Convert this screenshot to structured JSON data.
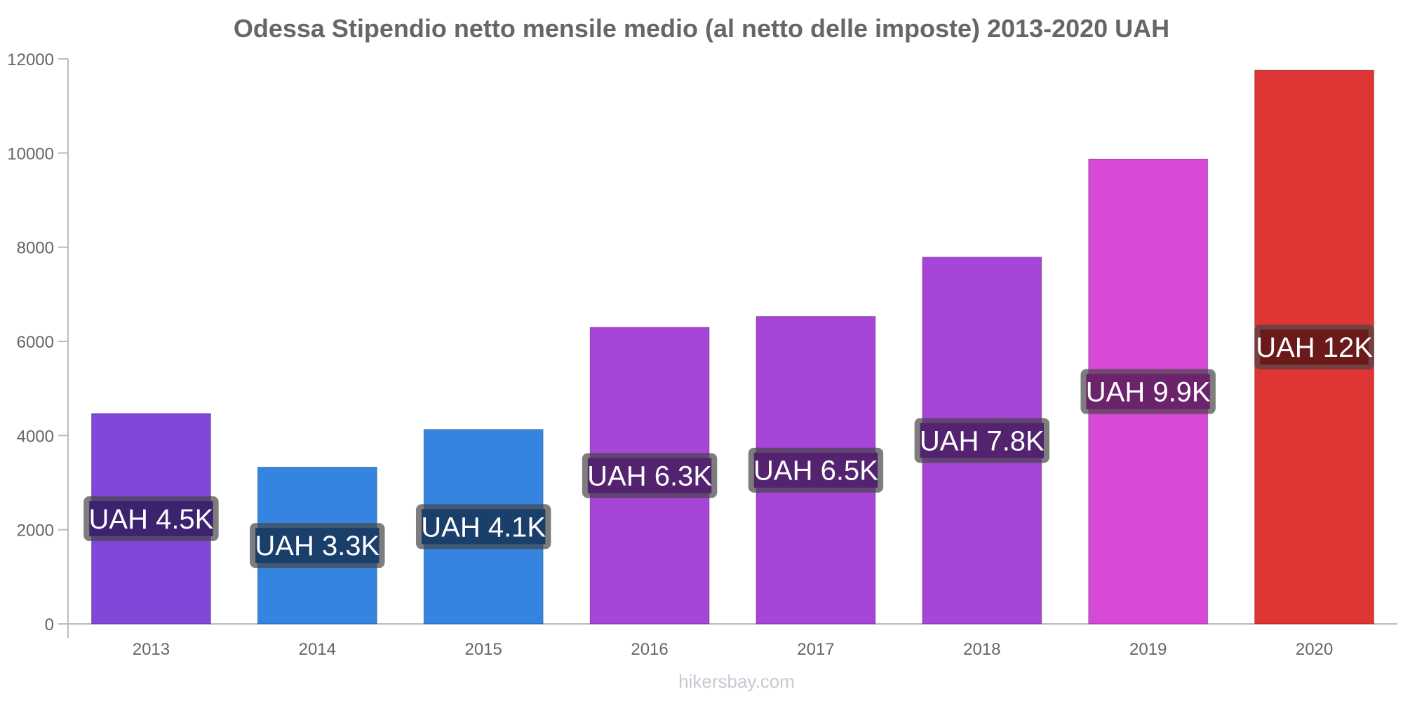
{
  "chart_data": {
    "type": "bar",
    "title": "Odessa Stipendio netto mensile medio (al netto delle imposte) 2013-2020 UAH",
    "xlabel": "",
    "ylabel": "",
    "ylim": [
      0,
      12000
    ],
    "yticks": [
      0,
      2000,
      4000,
      6000,
      8000,
      10000,
      12000
    ],
    "grid": false,
    "categories": [
      "2013",
      "2014",
      "2015",
      "2016",
      "2017",
      "2018",
      "2019",
      "2020"
    ],
    "values": [
      4470,
      3330,
      4130,
      6300,
      6530,
      7790,
      9870,
      11760
    ],
    "labels": [
      "UAH 4.5K",
      "UAH 3.3K",
      "UAH 4.1K",
      "UAH 6.3K",
      "UAH 6.5K",
      "UAH 7.8K",
      "UAH 9.9K",
      "UAH 12K"
    ],
    "colors": [
      "#8047d9",
      "#3584e0",
      "#3584e0",
      "#a745d8",
      "#a745d8",
      "#a745d8",
      "#d649d6",
      "#e03535"
    ],
    "label_backgrounds": [
      "#3d2270",
      "#1a3f6b",
      "#1a3f6b",
      "#532370",
      "#532370",
      "#532370",
      "#6b236b",
      "#6b1a1a"
    ]
  },
  "watermark": "hikersbay.com"
}
